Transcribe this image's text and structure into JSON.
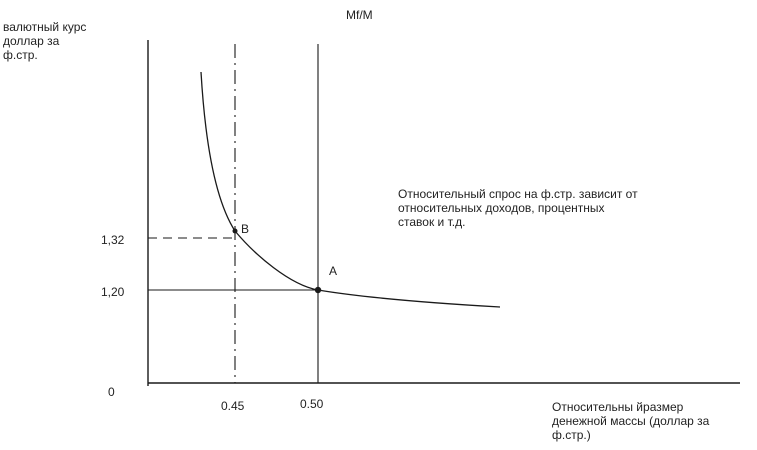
{
  "axis": {
    "y_title": "валютный курс\nдоллар за\nф.стр.",
    "top_label": "Mf/M",
    "x_title": "Относительны йразмер\nденежной массы (доллар за\nф.стр.)",
    "origin": "0"
  },
  "ticks": {
    "y": [
      "1,32",
      "1,20"
    ],
    "x": [
      "0.45",
      "0.50"
    ]
  },
  "points": {
    "A": "A",
    "B": "B"
  },
  "annotation": "Относительный спрос на ф.стр. зависит от\nотносительных доходов, процентных\nставок и т.д.",
  "colors": {
    "line": "#1a1a1a",
    "background": "#ffffff"
  }
}
